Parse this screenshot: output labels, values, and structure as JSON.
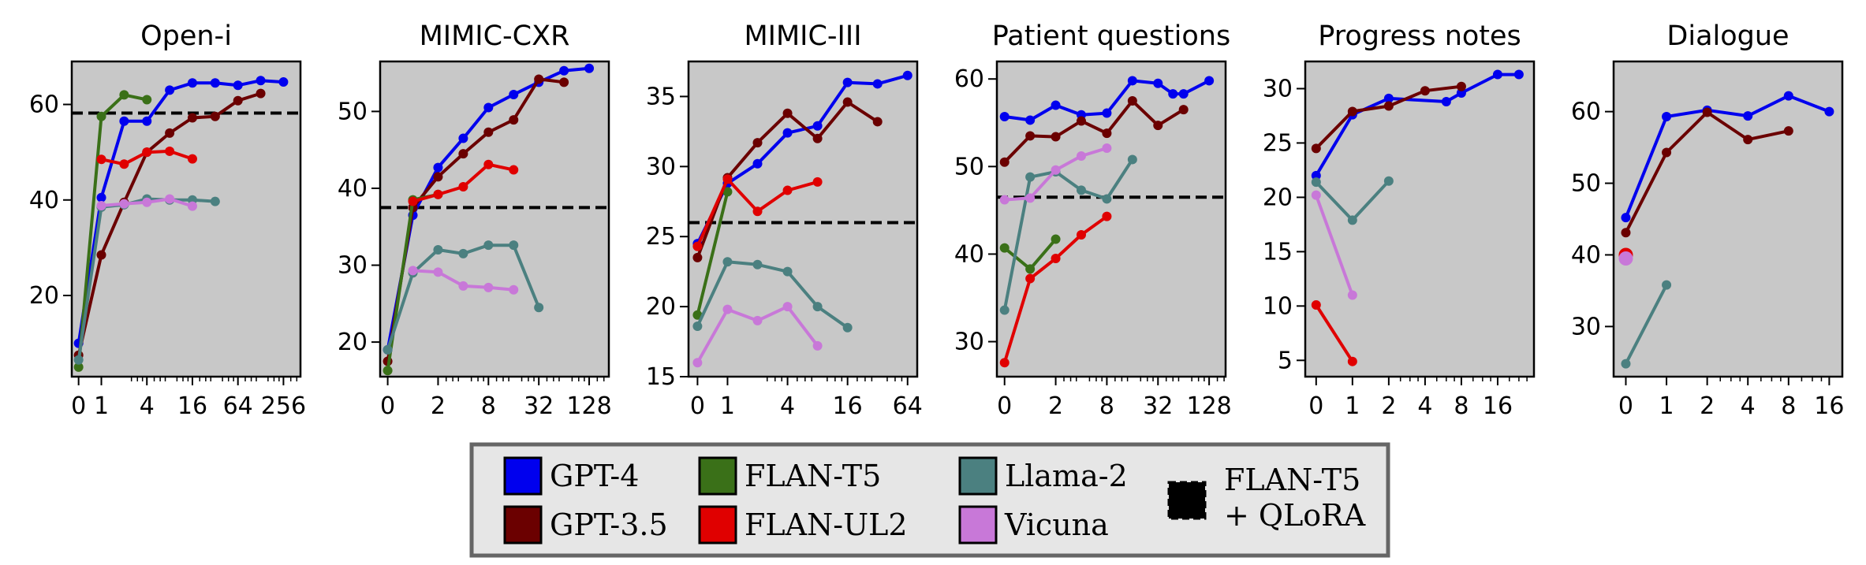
{
  "colors": {
    "panel_bg": "#c8c8c8",
    "legend_bg": "#e6e6e6",
    "legend_border": "#666666",
    "GPT-4": "#0000ee",
    "GPT-3.5": "#6b0000",
    "FLAN-T5": "#3a7018",
    "FLAN-UL2": "#e00000",
    "Llama-2": "#4b8080",
    "Vicuna": "#c878d8",
    "FLAN-T5 + QLoRA": "#000000"
  },
  "legend": {
    "placement": "bottom-center",
    "entries": [
      "GPT-4",
      "GPT-3.5",
      "FLAN-T5",
      "FLAN-UL2",
      "Llama-2",
      "Vicuna"
    ],
    "qlora_line1": "FLAN-T5",
    "qlora_line2": "+ QLoRA"
  },
  "chart_data": [
    {
      "type": "line",
      "title": "Open-i",
      "x_scale": "symlog",
      "xlim": [
        -0.3,
        430
      ],
      "x_ticks": [
        0,
        1,
        4,
        16,
        64,
        256
      ],
      "x_tick_labels": [
        "0",
        "1",
        "4",
        "16",
        "64",
        "256"
      ],
      "ylim": [
        3,
        69
      ],
      "y_ticks": [
        20,
        40,
        60
      ],
      "baseline": 58.2,
      "series": [
        {
          "name": "GPT-4",
          "x": [
            0,
            1,
            2,
            4,
            8,
            16,
            32,
            64,
            128,
            256
          ],
          "y": [
            10,
            40.5,
            56.5,
            56.5,
            63,
            64.5,
            64.5,
            64,
            65,
            64.7
          ]
        },
        {
          "name": "GPT-3.5",
          "x": [
            0,
            1,
            2,
            4,
            8,
            16,
            32,
            64,
            128
          ],
          "y": [
            7.5,
            28.5,
            39.5,
            50,
            54,
            57.2,
            57.5,
            60.8,
            62.3
          ]
        },
        {
          "name": "FLAN-T5",
          "x": [
            0,
            1,
            2,
            4
          ],
          "y": [
            5,
            57.5,
            62,
            61
          ]
        },
        {
          "name": "FLAN-UL2",
          "x": [
            1,
            2,
            4,
            8,
            16
          ],
          "y": [
            48.5,
            47.5,
            50,
            50.2,
            48.6
          ]
        },
        {
          "name": "Llama-2",
          "x": [
            0,
            1,
            2,
            4,
            8,
            16,
            32
          ],
          "y": [
            6.5,
            38.5,
            39,
            40.2,
            40,
            40,
            39.7
          ]
        },
        {
          "name": "Vicuna",
          "x": [
            1,
            2,
            4,
            8,
            16
          ],
          "y": [
            38.8,
            39.2,
            39.5,
            40.2,
            38.7
          ]
        }
      ]
    },
    {
      "type": "line",
      "title": "MIMIC-CXR",
      "x_scale": "symlog",
      "xlim": [
        -0.3,
        220
      ],
      "x_ticks": [
        0,
        2,
        8,
        32,
        128
      ],
      "x_tick_labels": [
        "0",
        "2",
        "8",
        "32",
        "128"
      ],
      "ylim": [
        15.5,
        56.5
      ],
      "y_ticks": [
        20,
        30,
        40,
        50
      ],
      "baseline": 37.5,
      "series": [
        {
          "name": "GPT-4",
          "x": [
            0,
            1,
            2,
            4,
            8,
            16,
            32,
            64,
            128
          ],
          "y": [
            19,
            36.5,
            42.7,
            46.5,
            50.5,
            52.2,
            53.8,
            55.3,
            55.6
          ]
        },
        {
          "name": "GPT-3.5",
          "x": [
            0,
            1,
            2,
            4,
            8,
            16,
            32,
            64
          ],
          "y": [
            17.5,
            37.5,
            41.5,
            44.5,
            47.3,
            48.9,
            54.2,
            53.8
          ]
        },
        {
          "name": "FLAN-T5",
          "x": [
            0,
            1,
            2
          ],
          "y": [
            16.3,
            38.5,
            39.2
          ]
        },
        {
          "name": "FLAN-UL2",
          "x": [
            1,
            2,
            4,
            8,
            16
          ],
          "y": [
            38.3,
            39.2,
            40.2,
            43.1,
            42.4
          ]
        },
        {
          "name": "Llama-2",
          "x": [
            0,
            1,
            2,
            4,
            8,
            16,
            32
          ],
          "y": [
            19,
            29,
            32,
            31.5,
            32.6,
            32.6,
            24.5
          ]
        },
        {
          "name": "Vicuna",
          "x": [
            1,
            2,
            4,
            8,
            16
          ],
          "y": [
            29.3,
            29.1,
            27.3,
            27.1,
            26.8
          ]
        }
      ]
    },
    {
      "type": "line",
      "title": "MIMIC-III",
      "x_scale": "symlog",
      "xlim": [
        -0.3,
        80
      ],
      "x_ticks": [
        0,
        1,
        4,
        16,
        64
      ],
      "x_tick_labels": [
        "0",
        "1",
        "4",
        "16",
        "64"
      ],
      "ylim": [
        15,
        37.5
      ],
      "y_ticks": [
        15,
        20,
        25,
        30,
        35
      ],
      "baseline": 26,
      "series": [
        {
          "name": "GPT-4",
          "x": [
            0,
            1,
            2,
            4,
            8,
            16,
            32,
            64
          ],
          "y": [
            24.5,
            28.8,
            30.2,
            32.4,
            32.9,
            36,
            35.9,
            36.5
          ]
        },
        {
          "name": "GPT-3.5",
          "x": [
            0,
            1,
            2,
            4,
            8,
            16,
            32
          ],
          "y": [
            23.5,
            29.2,
            31.7,
            33.8,
            32,
            34.6,
            33.2
          ]
        },
        {
          "name": "FLAN-T5",
          "x": [
            0,
            1
          ],
          "y": [
            19.4,
            28.2
          ]
        },
        {
          "name": "FLAN-UL2",
          "x": [
            0,
            1,
            2,
            4,
            8
          ],
          "y": [
            24.3,
            29.1,
            26.8,
            28.3,
            28.9
          ]
        },
        {
          "name": "Llama-2",
          "x": [
            0,
            1,
            2,
            4,
            8,
            16
          ],
          "y": [
            18.6,
            23.2,
            23,
            22.5,
            20,
            18.5
          ]
        },
        {
          "name": "Vicuna",
          "x": [
            0,
            1,
            2,
            4,
            8
          ],
          "y": [
            16,
            19.8,
            19,
            20,
            17.2
          ]
        }
      ]
    },
    {
      "type": "line",
      "title": "Patient questions",
      "x_scale": "symlog",
      "xlim": [
        -0.3,
        200
      ],
      "x_ticks": [
        0,
        2,
        8,
        32,
        128
      ],
      "x_tick_labels": [
        "0",
        "2",
        "8",
        "32",
        "128"
      ],
      "ylim": [
        26,
        62
      ],
      "y_ticks": [
        30,
        40,
        50,
        60
      ],
      "baseline": 46.5,
      "series": [
        {
          "name": "GPT-4",
          "x": [
            0,
            1,
            2,
            4,
            8,
            16,
            32,
            48,
            64,
            128
          ],
          "y": [
            55.7,
            55.3,
            57,
            55.9,
            56.1,
            59.8,
            59.5,
            58.3,
            58.3,
            59.8
          ]
        },
        {
          "name": "GPT-3.5",
          "x": [
            0,
            1,
            2,
            4,
            8,
            16,
            32,
            64
          ],
          "y": [
            50.5,
            53.5,
            53.4,
            55.2,
            53.8,
            57.5,
            54.7,
            56.5
          ]
        },
        {
          "name": "FLAN-T5",
          "x": [
            0,
            1,
            2
          ],
          "y": [
            40.7,
            38.3,
            41.7
          ]
        },
        {
          "name": "FLAN-UL2",
          "x": [
            0,
            1,
            2,
            4,
            8
          ],
          "y": [
            27.6,
            37.2,
            39.5,
            42.2,
            44.3
          ]
        },
        {
          "name": "Llama-2",
          "x": [
            0,
            1,
            2,
            4,
            8,
            16
          ],
          "y": [
            33.6,
            48.8,
            49.4,
            47.3,
            46.3,
            50.8
          ]
        },
        {
          "name": "Vicuna",
          "x": [
            0,
            1,
            2,
            4,
            8
          ],
          "y": [
            46.2,
            46.4,
            49.6,
            51.2,
            52.1
          ]
        }
      ]
    },
    {
      "type": "line",
      "title": "Progress notes",
      "x_scale": "symlog",
      "xlim": [
        -0.3,
        32
      ],
      "x_ticks": [
        0,
        1,
        2,
        4,
        8,
        16
      ],
      "x_tick_labels": [
        "0",
        "1",
        "2",
        "4",
        "8",
        "16"
      ],
      "ylim": [
        3.5,
        32.5
      ],
      "y_ticks": [
        5,
        10,
        15,
        20,
        25,
        30
      ],
      "series": [
        {
          "name": "GPT-4",
          "x": [
            0,
            1,
            2,
            6,
            8,
            16,
            24
          ],
          "y": [
            22,
            27.6,
            29.1,
            28.8,
            29.6,
            31.3,
            31.3
          ]
        },
        {
          "name": "GPT-3.5",
          "x": [
            0,
            1,
            2,
            4,
            8
          ],
          "y": [
            24.5,
            27.9,
            28.4,
            29.8,
            30.2
          ]
        },
        {
          "name": "FLAN-UL2",
          "x": [
            0,
            1
          ],
          "y": [
            10.1,
            4.9
          ]
        },
        {
          "name": "Llama-2",
          "x": [
            0,
            1,
            2
          ],
          "y": [
            21.4,
            17.9,
            21.5
          ]
        },
        {
          "name": "Vicuna",
          "x": [
            0,
            1
          ],
          "y": [
            20.2,
            11
          ]
        }
      ]
    },
    {
      "type": "line",
      "title": "Dialogue",
      "x_scale": "symlog",
      "xlim": [
        -0.3,
        20
      ],
      "x_ticks": [
        0,
        1,
        2,
        4,
        8,
        16
      ],
      "x_tick_labels": [
        "0",
        "1",
        "2",
        "4",
        "8",
        "16"
      ],
      "ylim": [
        23,
        67
      ],
      "y_ticks": [
        30,
        40,
        50,
        60
      ],
      "series": [
        {
          "name": "GPT-4",
          "x": [
            0,
            1,
            2,
            4,
            8,
            16
          ],
          "y": [
            45.2,
            59.3,
            60.2,
            59.4,
            62.2,
            60
          ]
        },
        {
          "name": "GPT-3.5",
          "x": [
            0,
            1,
            2,
            4,
            8
          ],
          "y": [
            43.1,
            54.3,
            59.9,
            56.1,
            57.3
          ]
        },
        {
          "name": "FLAN-UL2",
          "x": [
            0
          ],
          "y": [
            40
          ]
        },
        {
          "name": "Llama-2",
          "x": [
            0,
            1
          ],
          "y": [
            24.8,
            35.8
          ]
        },
        {
          "name": "Vicuna",
          "x": [
            0
          ],
          "y": [
            39.5
          ]
        }
      ]
    }
  ]
}
